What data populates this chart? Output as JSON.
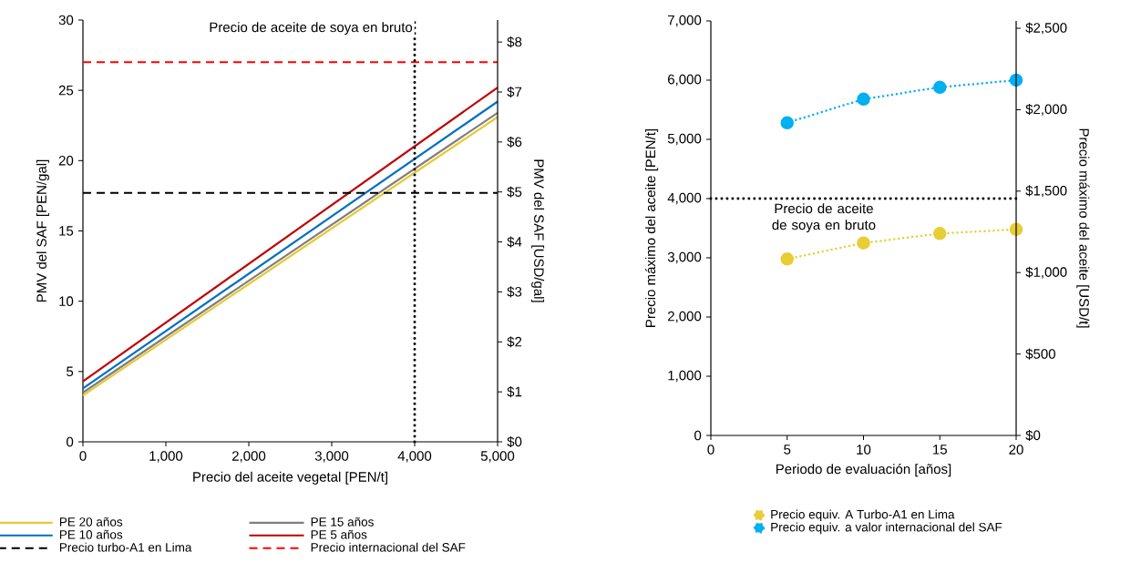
{
  "chart_data": [
    {
      "type": "line",
      "xlabel": "Precio del aceite vegetal [PEN/t]",
      "ylabel": "PMV del SAF [PEN/gal]",
      "y2label": "PMV del SAF [USD/gal]",
      "x": [
        0,
        5000
      ],
      "series": [
        {
          "name": "PE 20 años",
          "color": "#e8c832",
          "values": [
            3.3,
            23.1
          ]
        },
        {
          "name": "PE 15 años",
          "color": "#7f7f7f",
          "values": [
            3.5,
            23.4
          ]
        },
        {
          "name": "PE 10 años",
          "color": "#0070c0",
          "values": [
            3.8,
            24.2
          ]
        },
        {
          "name": "PE 5 años",
          "color": "#c00000",
          "values": [
            4.3,
            25.2
          ]
        }
      ],
      "xlim": [
        0,
        5000
      ],
      "xticks": [
        0,
        {
          "value": 1000,
          "label": "1,000"
        },
        {
          "value": 2000,
          "label": "2,000"
        },
        {
          "value": 3000,
          "label": "3,000"
        },
        {
          "value": 4000,
          "label": "4,000"
        },
        {
          "value": 5000,
          "label": "5,000"
        }
      ],
      "ylim": [
        0,
        30
      ],
      "yticks": [
        0,
        5,
        10,
        15,
        20,
        25,
        30
      ],
      "y2lim": [
        0,
        8.44
      ],
      "y2ticks": [
        {
          "value": 0,
          "label": "$0"
        },
        {
          "value": 1,
          "label": "$1"
        },
        {
          "value": 2,
          "label": "$2"
        },
        {
          "value": 3,
          "label": "$3"
        },
        {
          "value": 4,
          "label": "$4"
        },
        {
          "value": 5,
          "label": "$5"
        },
        {
          "value": 6,
          "label": "$6"
        },
        {
          "value": 7,
          "label": "$7"
        },
        {
          "value": 8,
          "label": "$8"
        }
      ],
      "ref_lines": [
        {
          "axis": "y",
          "value": 17.7,
          "label": "Precio turbo-A1 en Lima",
          "color": "#000000",
          "line_style": "dashed"
        },
        {
          "axis": "y",
          "value": 27.0,
          "label": "Precio internacional del SAF",
          "color": "#ff0000",
          "line_style": "dashed"
        },
        {
          "axis": "x",
          "value": 4000,
          "label": "Precio de aceite de soya en bruto",
          "color": "#000000",
          "line_style": "dotted"
        }
      ],
      "marker": "none",
      "line_style": "solid",
      "legend": "bottom",
      "grid": false
    },
    {
      "type": "line",
      "xlabel": "Periodo de evaluación [años]",
      "ylabel": "Precio máximo del aceite [PEN/t]",
      "y2label": "Precio máximo del aceite [USD/t]",
      "x": [
        5,
        10,
        15,
        20
      ],
      "series": [
        {
          "name": "Precio equiv. A Turbo-A1 en Lima",
          "color": "#e8cd34",
          "values": [
            2980,
            3250,
            3410,
            3480
          ]
        },
        {
          "name": "Precio equiv. a valor internacional del SAF",
          "color": "#00b0f0",
          "values": [
            5280,
            5680,
            5880,
            6000
          ]
        }
      ],
      "xlim": [
        0,
        20
      ],
      "xticks": [
        0,
        5,
        10,
        15,
        20
      ],
      "ylim": [
        0,
        7000
      ],
      "yticks": [
        0,
        {
          "value": 1000,
          "label": "1,000"
        },
        {
          "value": 2000,
          "label": "2,000"
        },
        {
          "value": 3000,
          "label": "3,000"
        },
        {
          "value": 4000,
          "label": "4,000"
        },
        {
          "value": 5000,
          "label": "5,000"
        },
        {
          "value": 6000,
          "label": "6,000"
        },
        {
          "value": 7000,
          "label": "7,000"
        }
      ],
      "y2lim": [
        0,
        2545
      ],
      "y2ticks": [
        {
          "value": 0,
          "label": "$0"
        },
        {
          "value": 500,
          "label": "$500"
        },
        {
          "value": 1000,
          "label": "$1,000"
        },
        {
          "value": 1500,
          "label": "$1,500"
        },
        {
          "value": 2000,
          "label": "$2,000"
        },
        {
          "value": 2500,
          "label": "$2,500"
        }
      ],
      "ref_lines": [
        {
          "axis": "y",
          "value": 4000,
          "label": "Precio de aceite de soya en bruto",
          "color": "#000000",
          "line_style": "dotted"
        }
      ],
      "marker": "circle",
      "line_style": "dotted",
      "legend": "bottom",
      "grid": false
    }
  ]
}
